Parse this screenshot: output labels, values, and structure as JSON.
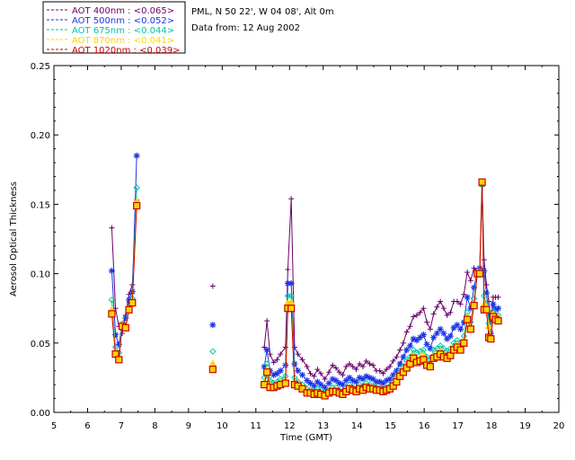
{
  "chart_data": {
    "type": "line",
    "title": "",
    "xlabel": "Time (GMT)",
    "ylabel": "Aerosol Optical Thickness",
    "xlim": [
      5,
      20
    ],
    "ylim": [
      0.0,
      0.25
    ],
    "xticks": [
      5,
      6,
      7,
      8,
      9,
      10,
      11,
      12,
      13,
      14,
      15,
      16,
      17,
      18,
      19,
      20
    ],
    "yticks": [
      0.0,
      0.05,
      0.1,
      0.15,
      0.2,
      0.25
    ],
    "ytick_labels": [
      "0.00",
      "0.05",
      "0.10",
      "0.15",
      "0.20",
      "0.25"
    ],
    "legend_position": "top-left",
    "annotations": [
      "PML, N 50 22', W 04 08', Alt 0m",
      "Data from: 12 Aug 2002"
    ],
    "series": [
      {
        "name": "AOT  400nm : <0.065>",
        "color": "#6a006a",
        "marker": "plus",
        "x": [
          6.72,
          6.83,
          6.93,
          7.03,
          7.13,
          7.23,
          7.33,
          7.46,
          9.72,
          11.25,
          11.33,
          11.42,
          11.53,
          11.63,
          11.73,
          11.88,
          11.95,
          12.05,
          12.15,
          12.25,
          12.38,
          12.52,
          12.62,
          12.73,
          12.83,
          12.93,
          13.05,
          13.17,
          13.28,
          13.38,
          13.48,
          13.58,
          13.68,
          13.78,
          13.88,
          13.98,
          14.08,
          14.18,
          14.28,
          14.38,
          14.48,
          14.58,
          14.68,
          14.78,
          14.88,
          14.98,
          15.08,
          15.18,
          15.28,
          15.38,
          15.48,
          15.58,
          15.68,
          15.78,
          15.88,
          15.98,
          16.08,
          16.18,
          16.28,
          16.38,
          16.48,
          16.58,
          16.68,
          16.78,
          16.88,
          16.98,
          17.08,
          17.18,
          17.28,
          17.38,
          17.48,
          17.58,
          17.65,
          17.72,
          17.78,
          17.85,
          17.92,
          17.98,
          18.05,
          18.12,
          18.2
        ],
        "y": [
          0.133,
          0.075,
          0.062,
          0.057,
          0.07,
          0.085,
          0.092,
          0.153,
          0.091,
          0.047,
          0.066,
          0.042,
          0.036,
          0.038,
          0.042,
          0.047,
          0.103,
          0.154,
          0.047,
          0.042,
          0.038,
          0.033,
          0.028,
          0.026,
          0.031,
          0.028,
          0.024,
          0.029,
          0.034,
          0.032,
          0.029,
          0.027,
          0.033,
          0.035,
          0.033,
          0.031,
          0.035,
          0.033,
          0.037,
          0.035,
          0.034,
          0.03,
          0.03,
          0.028,
          0.031,
          0.033,
          0.037,
          0.04,
          0.045,
          0.05,
          0.058,
          0.062,
          0.069,
          0.07,
          0.072,
          0.075,
          0.065,
          0.06,
          0.071,
          0.076,
          0.08,
          0.075,
          0.07,
          0.072,
          0.08,
          0.08,
          0.078,
          0.085,
          0.101,
          0.095,
          0.104,
          0.1,
          0.101,
          0.163,
          0.11,
          0.092,
          0.08,
          0.065,
          0.083,
          0.083,
          0.083
        ]
      },
      {
        "name": "AOT  500nm : <0.052>",
        "color": "#1c36e6",
        "marker": "asterisk",
        "x": [
          6.72,
          6.83,
          6.93,
          7.03,
          7.13,
          7.23,
          7.33,
          7.46,
          9.72,
          11.25,
          11.33,
          11.42,
          11.53,
          11.63,
          11.73,
          11.88,
          11.95,
          12.05,
          12.15,
          12.25,
          12.38,
          12.52,
          12.62,
          12.73,
          12.83,
          12.93,
          13.05,
          13.17,
          13.28,
          13.38,
          13.48,
          13.58,
          13.68,
          13.78,
          13.88,
          13.98,
          14.08,
          14.18,
          14.28,
          14.38,
          14.48,
          14.58,
          14.68,
          14.78,
          14.88,
          14.98,
          15.08,
          15.18,
          15.28,
          15.38,
          15.48,
          15.58,
          15.68,
          15.78,
          15.88,
          15.98,
          16.08,
          16.18,
          16.28,
          16.38,
          16.48,
          16.58,
          16.68,
          16.78,
          16.88,
          16.98,
          17.08,
          17.18,
          17.28,
          17.38,
          17.48,
          17.58,
          17.65,
          17.72,
          17.78,
          17.85,
          17.92,
          17.98,
          18.05,
          18.12,
          18.2
        ],
        "y": [
          0.102,
          0.056,
          0.049,
          0.063,
          0.068,
          0.081,
          0.087,
          0.185,
          0.063,
          0.033,
          0.045,
          0.03,
          0.027,
          0.028,
          0.03,
          0.034,
          0.093,
          0.093,
          0.035,
          0.03,
          0.027,
          0.023,
          0.021,
          0.019,
          0.022,
          0.02,
          0.018,
          0.021,
          0.024,
          0.023,
          0.021,
          0.02,
          0.023,
          0.025,
          0.023,
          0.022,
          0.025,
          0.024,
          0.026,
          0.025,
          0.024,
          0.022,
          0.022,
          0.021,
          0.023,
          0.024,
          0.027,
          0.03,
          0.035,
          0.04,
          0.045,
          0.048,
          0.053,
          0.052,
          0.054,
          0.056,
          0.049,
          0.046,
          0.054,
          0.057,
          0.06,
          0.057,
          0.053,
          0.055,
          0.061,
          0.063,
          0.06,
          0.065,
          0.083,
          0.075,
          0.09,
          0.102,
          0.104,
          0.166,
          0.102,
          0.086,
          0.07,
          0.057,
          0.078,
          0.074,
          0.075
        ]
      },
      {
        "name": "AOT  675nm : <0.044>",
        "color": "#00c6a6",
        "marker": "diamond",
        "x": [
          6.72,
          6.83,
          6.93,
          7.03,
          7.13,
          7.23,
          7.33,
          7.46,
          9.72,
          11.25,
          11.33,
          11.42,
          11.53,
          11.63,
          11.73,
          11.88,
          11.95,
          12.05,
          12.15,
          12.25,
          12.38,
          12.52,
          12.62,
          12.73,
          12.83,
          12.93,
          13.05,
          13.17,
          13.28,
          13.38,
          13.48,
          13.58,
          13.68,
          13.78,
          13.88,
          13.98,
          14.08,
          14.18,
          14.28,
          14.38,
          14.48,
          14.58,
          14.68,
          14.78,
          14.88,
          14.98,
          15.08,
          15.18,
          15.28,
          15.38,
          15.48,
          15.58,
          15.68,
          15.78,
          15.88,
          15.98,
          16.08,
          16.18,
          16.28,
          16.38,
          16.48,
          16.58,
          16.68,
          16.78,
          16.88,
          16.98,
          17.08,
          17.18,
          17.28,
          17.38,
          17.48,
          17.58,
          17.65,
          17.72,
          17.78,
          17.85,
          17.92,
          17.98,
          18.05,
          18.12,
          18.2
        ],
        "y": [
          0.081,
          0.047,
          0.043,
          0.064,
          0.062,
          0.076,
          0.082,
          0.162,
          0.044,
          0.025,
          0.035,
          0.023,
          0.021,
          0.022,
          0.024,
          0.026,
          0.084,
          0.084,
          0.025,
          0.022,
          0.02,
          0.017,
          0.016,
          0.015,
          0.017,
          0.016,
          0.014,
          0.016,
          0.018,
          0.018,
          0.016,
          0.015,
          0.018,
          0.02,
          0.018,
          0.017,
          0.02,
          0.019,
          0.021,
          0.02,
          0.019,
          0.018,
          0.018,
          0.017,
          0.018,
          0.019,
          0.022,
          0.026,
          0.03,
          0.033,
          0.037,
          0.04,
          0.045,
          0.043,
          0.044,
          0.045,
          0.04,
          0.038,
          0.045,
          0.046,
          0.048,
          0.046,
          0.044,
          0.046,
          0.05,
          0.052,
          0.05,
          0.055,
          0.072,
          0.065,
          0.082,
          0.101,
          0.102,
          0.164,
          0.084,
          0.078,
          0.064,
          0.055,
          0.073,
          0.07,
          0.07
        ]
      },
      {
        "name": "AOT  870nm : <0.041>",
        "color": "#ffd400",
        "marker": "triangle",
        "x": [
          6.72,
          6.83,
          6.93,
          7.03,
          7.13,
          7.23,
          7.33,
          7.46,
          9.72,
          11.25,
          11.33,
          11.42,
          11.53,
          11.63,
          11.73,
          11.88,
          11.95,
          12.05,
          12.15,
          12.25,
          12.38,
          12.52,
          12.62,
          12.73,
          12.83,
          12.93,
          13.05,
          13.17,
          13.28,
          13.38,
          13.48,
          13.58,
          13.68,
          13.78,
          13.88,
          13.98,
          14.08,
          14.18,
          14.28,
          14.38,
          14.48,
          14.58,
          14.68,
          14.78,
          14.88,
          14.98,
          15.08,
          15.18,
          15.28,
          15.38,
          15.48,
          15.58,
          15.68,
          15.78,
          15.88,
          15.98,
          16.08,
          16.18,
          16.28,
          16.38,
          16.48,
          16.58,
          16.68,
          16.78,
          16.88,
          16.98,
          17.08,
          17.18,
          17.28,
          17.38,
          17.48,
          17.58,
          17.65,
          17.72,
          17.78,
          17.85,
          17.92,
          17.98,
          18.05,
          18.12,
          18.2
        ],
        "y": [
          0.074,
          0.044,
          0.04,
          0.063,
          0.062,
          0.075,
          0.08,
          0.152,
          0.035,
          0.022,
          0.031,
          0.02,
          0.019,
          0.02,
          0.021,
          0.023,
          0.079,
          0.079,
          0.022,
          0.02,
          0.018,
          0.015,
          0.015,
          0.014,
          0.015,
          0.014,
          0.013,
          0.015,
          0.016,
          0.016,
          0.015,
          0.014,
          0.016,
          0.018,
          0.017,
          0.016,
          0.018,
          0.017,
          0.019,
          0.018,
          0.018,
          0.017,
          0.017,
          0.016,
          0.017,
          0.018,
          0.02,
          0.024,
          0.028,
          0.031,
          0.034,
          0.037,
          0.041,
          0.039,
          0.04,
          0.041,
          0.036,
          0.035,
          0.041,
          0.042,
          0.044,
          0.042,
          0.041,
          0.043,
          0.047,
          0.049,
          0.047,
          0.052,
          0.069,
          0.062,
          0.079,
          0.101,
          0.101,
          0.166,
          0.078,
          0.076,
          0.062,
          0.055,
          0.071,
          0.069,
          0.068
        ]
      },
      {
        "name": "AOT 1020nm : <0.039>",
        "color": "#cc0000",
        "marker": "square",
        "x": [
          6.72,
          6.83,
          6.93,
          7.03,
          7.13,
          7.23,
          7.33,
          7.46,
          9.72,
          11.25,
          11.33,
          11.42,
          11.53,
          11.63,
          11.73,
          11.88,
          11.95,
          12.05,
          12.15,
          12.25,
          12.38,
          12.52,
          12.62,
          12.73,
          12.83,
          12.93,
          13.05,
          13.17,
          13.28,
          13.38,
          13.48,
          13.58,
          13.68,
          13.78,
          13.88,
          13.98,
          14.08,
          14.18,
          14.28,
          14.38,
          14.48,
          14.58,
          14.68,
          14.78,
          14.88,
          14.98,
          15.08,
          15.18,
          15.28,
          15.38,
          15.48,
          15.58,
          15.68,
          15.78,
          15.88,
          15.98,
          16.08,
          16.18,
          16.28,
          16.38,
          16.48,
          16.58,
          16.68,
          16.78,
          16.88,
          16.98,
          17.08,
          17.18,
          17.28,
          17.38,
          17.48,
          17.58,
          17.65,
          17.72,
          17.78,
          17.85,
          17.92,
          17.98,
          18.05,
          18.12,
          18.2
        ],
        "y": [
          0.071,
          0.042,
          0.038,
          0.062,
          0.061,
          0.074,
          0.079,
          0.149,
          0.031,
          0.02,
          0.029,
          0.018,
          0.018,
          0.019,
          0.02,
          0.021,
          0.075,
          0.075,
          0.02,
          0.019,
          0.017,
          0.014,
          0.014,
          0.013,
          0.014,
          0.013,
          0.012,
          0.014,
          0.015,
          0.015,
          0.014,
          0.013,
          0.015,
          0.017,
          0.016,
          0.015,
          0.017,
          0.016,
          0.018,
          0.017,
          0.017,
          0.016,
          0.016,
          0.015,
          0.016,
          0.017,
          0.019,
          0.022,
          0.026,
          0.029,
          0.032,
          0.035,
          0.039,
          0.036,
          0.037,
          0.038,
          0.034,
          0.033,
          0.039,
          0.04,
          0.042,
          0.04,
          0.039,
          0.041,
          0.045,
          0.047,
          0.045,
          0.05,
          0.067,
          0.06,
          0.077,
          0.1,
          0.1,
          0.166,
          0.074,
          0.074,
          0.054,
          0.053,
          0.069,
          0.067,
          0.066
        ]
      }
    ]
  }
}
